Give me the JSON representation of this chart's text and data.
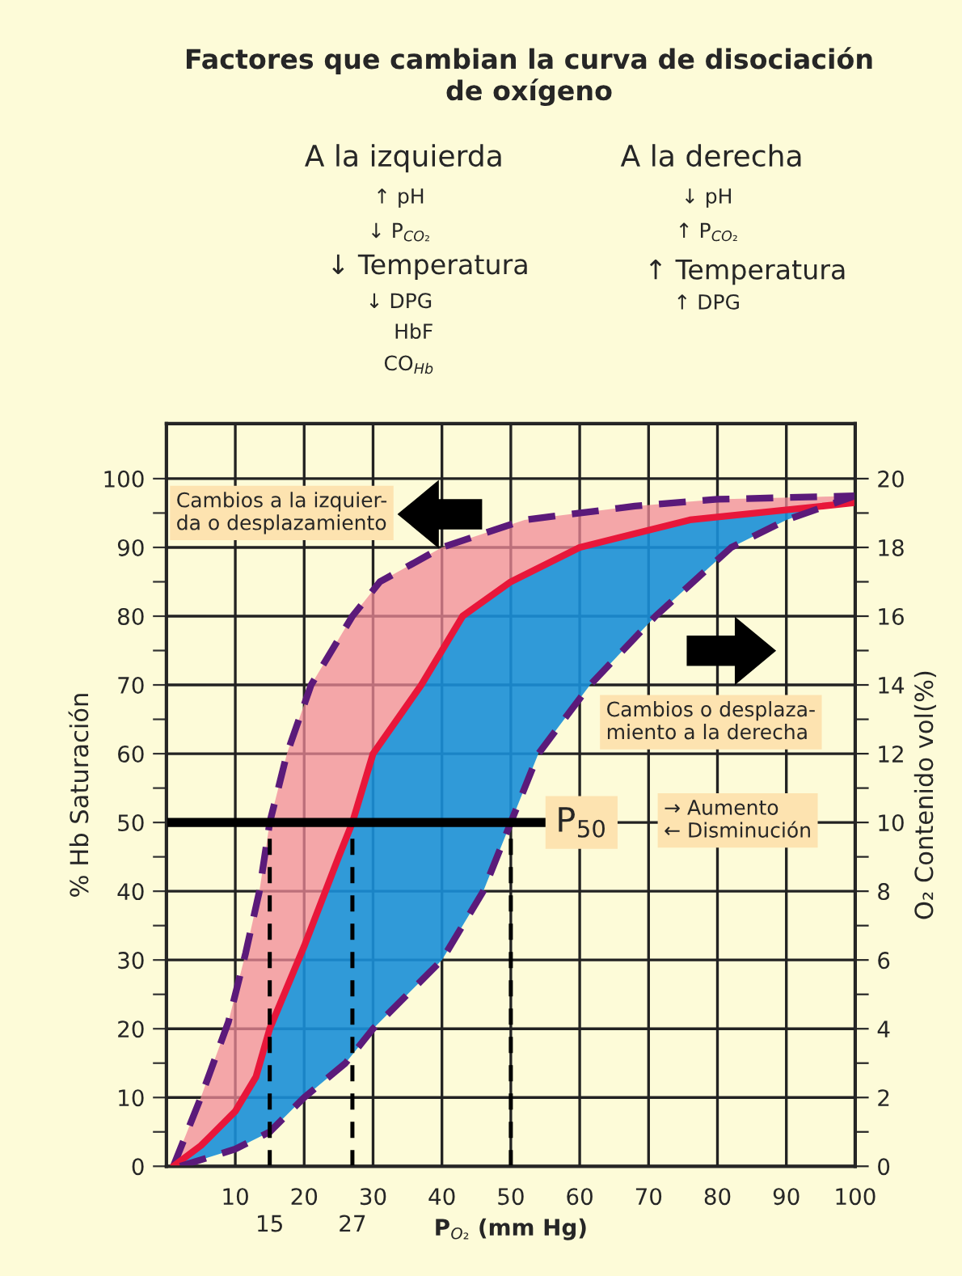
{
  "chart_data": {
    "type": "line",
    "title": "Factores que cambian la curva de disociación\nde oxígeno",
    "xlabel": "P$_{O₂}$ (mm Hg)",
    "ylabel": "% Hb Saturación",
    "y2label": "O₂ Contenido vol(%)",
    "series": [
      {
        "color": "#5b1a7a",
        "line_style": "dashed",
        "x": [
          1,
          5,
          9,
          11.5,
          13.5,
          15,
          17.5,
          21,
          27,
          31,
          40,
          52,
          68,
          80,
          100
        ],
        "values": [
          0,
          10,
          21,
          31,
          40,
          50,
          60,
          70,
          80,
          85,
          90,
          94,
          96,
          97,
          97.5
        ]
      },
      {
        "color": "#e8173a",
        "line_style": "solid",
        "x": [
          1,
          5,
          10,
          13,
          15,
          20,
          25,
          27,
          30,
          37,
          43,
          50,
          60,
          76,
          100
        ],
        "values": [
          0,
          3,
          8,
          13,
          20,
          32,
          45,
          50,
          60,
          70,
          80,
          85,
          90,
          94,
          96.5
        ]
      },
      {
        "color": "#5b1a7a",
        "line_style": "dashed",
        "x": [
          2,
          10,
          15,
          20,
          26,
          30,
          40,
          46,
          50,
          54,
          61.5,
          71,
          82,
          90,
          100
        ],
        "values": [
          0,
          2.5,
          5,
          10,
          15,
          20,
          30,
          40,
          50,
          60,
          70,
          80,
          90,
          94,
          97.5
        ]
      }
    ],
    "xlim": [
      0,
      100
    ],
    "ylim": [
      0,
      108
    ],
    "y2lim": [
      0,
      21.6
    ],
    "xticks": [
      10,
      20,
      30,
      40,
      50,
      60,
      70,
      80,
      90,
      100
    ],
    "yticks": [
      0,
      10,
      20,
      30,
      40,
      50,
      60,
      70,
      80,
      90,
      100,
      {
        "value": 5,
        "label": null
      },
      {
        "value": 15,
        "label": null
      },
      {
        "value": 25,
        "label": null
      },
      {
        "value": 35,
        "label": null
      },
      {
        "value": 45,
        "label": null
      },
      {
        "value": 55,
        "label": null
      },
      {
        "value": 65,
        "label": null
      },
      {
        "value": 75,
        "label": null
      },
      {
        "value": 85,
        "label": null
      },
      {
        "value": 95,
        "label": null
      }
    ],
    "y2ticks": [
      0,
      2,
      4,
      6,
      8,
      10,
      12,
      14,
      16,
      18,
      20,
      {
        "value": 1,
        "label": null
      },
      {
        "value": 3,
        "label": null
      },
      {
        "value": 5,
        "label": null
      },
      {
        "value": 7,
        "label": null
      },
      {
        "value": 9,
        "label": null
      },
      {
        "value": 11,
        "label": null
      },
      {
        "value": 13,
        "label": null
      },
      {
        "value": 15,
        "label": null
      },
      {
        "value": 17,
        "label": null
      },
      {
        "value": 19,
        "label": null
      }
    ],
    "grid": true,
    "ref_lines": [
      {
        "axis": "y",
        "value": 50,
        "label": "P$_{50}$",
        "color": "#000000",
        "line_style": "solid"
      },
      {
        "axis": "x",
        "value": 15,
        "label": "15",
        "color": "#000000",
        "line_style": "dashed"
      },
      {
        "axis": "x",
        "value": 27,
        "label": "27",
        "color": "#000000",
        "line_style": "dashed"
      },
      {
        "axis": "x",
        "value": 50,
        "color": "#000000",
        "line_style": "dashed"
      }
    ],
    "annotations": [
      "A la izquierda",
      "↑ pH",
      "↓ P$_{CO₂}$",
      "↓ Temperatura",
      "↓ DPG",
      "HbF",
      "CO$_{Hb}$",
      "A la derecha",
      "↓ pH",
      "↑ P$_{CO₂}$",
      "↑ Temperatura",
      "↑ DPG",
      "Cambios a la izquier-\nda o desplazamiento",
      "Cambios o desplaza-\nmiento a la derecha",
      "→ Aumento\n← Disminución"
    ]
  }
}
